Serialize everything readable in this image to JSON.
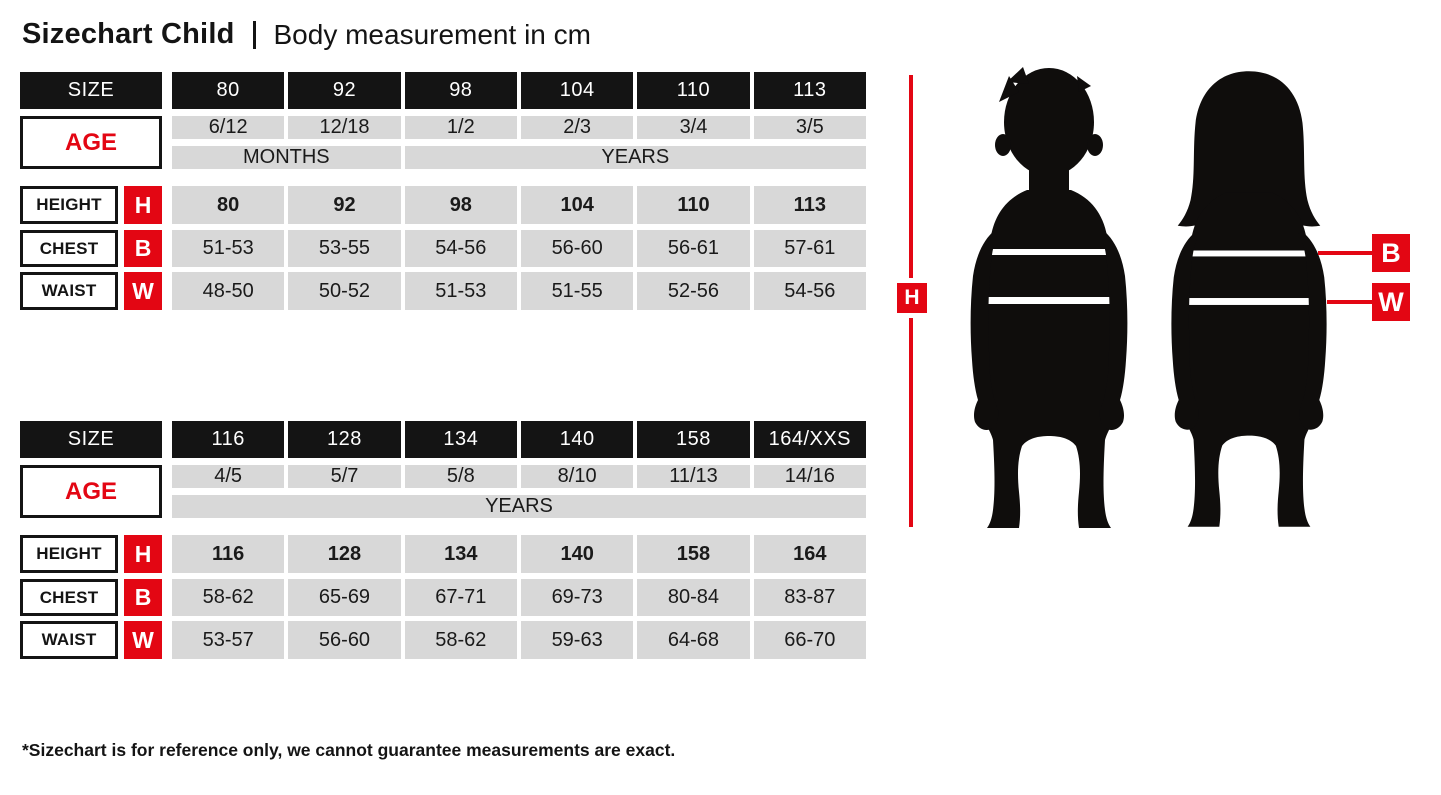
{
  "title": {
    "main": "Sizechart Child",
    "subtitle": "Body measurement in cm"
  },
  "colors": {
    "accent_red": "#e30613",
    "cell_black": "#141414",
    "cell_gray": "#d8d8d8"
  },
  "labels": {
    "size": "SIZE",
    "age": "AGE",
    "height": "HEIGHT",
    "chest": "CHEST",
    "waist": "WAIST",
    "h": "H",
    "b": "B",
    "w": "W"
  },
  "tables": [
    {
      "sizes": [
        "80",
        "92",
        "98",
        "104",
        "110",
        "113"
      ],
      "ages": [
        "6/12",
        "12/18",
        "1/2",
        "2/3",
        "3/4",
        "3/5"
      ],
      "age_units": [
        {
          "label": "MONTHS",
          "span": 2
        },
        {
          "label": "YEARS",
          "span": 4
        }
      ],
      "height": [
        "80",
        "92",
        "98",
        "104",
        "110",
        "113"
      ],
      "chest": [
        "51-53",
        "53-55",
        "54-56",
        "56-60",
        "56-61",
        "57-61"
      ],
      "waist": [
        "48-50",
        "50-52",
        "51-53",
        "51-55",
        "52-56",
        "54-56"
      ]
    },
    {
      "sizes": [
        "116",
        "128",
        "134",
        "140",
        "158",
        "164/XXS"
      ],
      "ages": [
        "4/5",
        "5/7",
        "5/8",
        "8/10",
        "11/13",
        "14/16"
      ],
      "age_units": [
        {
          "label": "YEARS",
          "span": 6
        }
      ],
      "height": [
        "116",
        "128",
        "134",
        "140",
        "158",
        "164"
      ],
      "chest": [
        "58-62",
        "65-69",
        "67-71",
        "69-73",
        "80-84",
        "83-87"
      ],
      "waist": [
        "53-57",
        "56-60",
        "58-62",
        "59-63",
        "64-68",
        "66-70"
      ]
    }
  ],
  "figure": {
    "height_marker": "H",
    "chest_marker": "B",
    "waist_marker": "W"
  },
  "footnote": "*Sizechart is for reference only, we cannot guarantee measurements are exact."
}
